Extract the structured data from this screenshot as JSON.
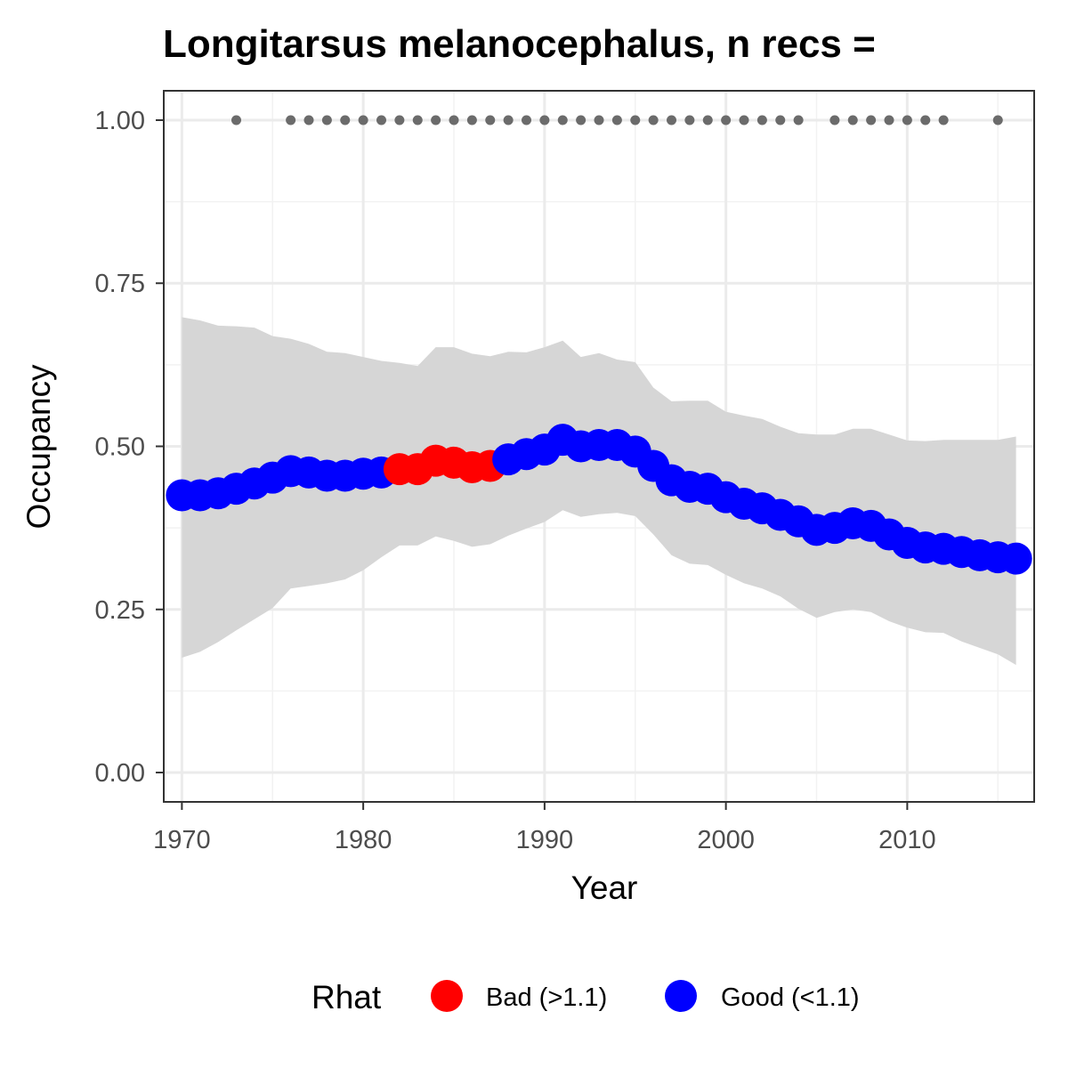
{
  "chart_data": {
    "type": "line",
    "title": "Longitarsus melanocephalus, n recs =",
    "xlabel": "Year",
    "ylabel": "Occupancy",
    "xlim": [
      1969,
      2017
    ],
    "ylim": [
      -0.045,
      1.045
    ],
    "x_ticks": [
      "1970",
      "1980",
      "1990",
      "2000",
      "2010"
    ],
    "y_ticks": [
      "0.00",
      "0.25",
      "0.50",
      "0.75",
      "1.00"
    ],
    "grid": true,
    "legend_position": "bottom",
    "legend": {
      "title": "Rhat",
      "entries": [
        {
          "label": "Bad (>1.1)",
          "color": "#ff0000"
        },
        {
          "label": "Good (<1.1)",
          "color": "#0000ff"
        }
      ]
    },
    "colors": {
      "bad": "#ff0000",
      "good": "#0000ff",
      "ribbon": "#d6d6d6",
      "records": "#6b6b6b"
    },
    "series": [
      {
        "name": "Rhat",
        "x": [
          1970,
          1971,
          1972,
          1973,
          1974,
          1975,
          1976,
          1977,
          1978,
          1979,
          1980,
          1981,
          1982,
          1983,
          1984,
          1985,
          1986,
          1987,
          1988,
          1989,
          1990,
          1991,
          1992,
          1993,
          1994,
          1995,
          1996,
          1997,
          1998,
          1999,
          2000,
          2001,
          2002,
          2003,
          2004,
          2005,
          2006,
          2007,
          2008,
          2009,
          2010,
          2011,
          2012,
          2013,
          2014,
          2015,
          2016
        ],
        "y": [
          0.425,
          0.425,
          0.428,
          0.435,
          0.443,
          0.452,
          0.462,
          0.46,
          0.455,
          0.455,
          0.458,
          0.46,
          0.465,
          0.465,
          0.478,
          0.475,
          0.468,
          0.47,
          0.48,
          0.488,
          0.495,
          0.51,
          0.5,
          0.502,
          0.502,
          0.492,
          0.47,
          0.448,
          0.438,
          0.435,
          0.422,
          0.412,
          0.405,
          0.395,
          0.385,
          0.372,
          0.375,
          0.382,
          0.378,
          0.365,
          0.352,
          0.345,
          0.343,
          0.338,
          0.333,
          0.33,
          0.328
        ],
        "lower": [
          0.176,
          0.185,
          0.2,
          0.218,
          0.235,
          0.252,
          0.282,
          0.286,
          0.29,
          0.296,
          0.31,
          0.33,
          0.348,
          0.348,
          0.362,
          0.355,
          0.346,
          0.35,
          0.363,
          0.374,
          0.384,
          0.402,
          0.392,
          0.396,
          0.398,
          0.393,
          0.365,
          0.333,
          0.32,
          0.318,
          0.303,
          0.29,
          0.282,
          0.27,
          0.251,
          0.237,
          0.246,
          0.25,
          0.246,
          0.232,
          0.222,
          0.215,
          0.214,
          0.201,
          0.191,
          0.181,
          0.165
        ],
        "upper": [
          0.698,
          0.693,
          0.685,
          0.684,
          0.682,
          0.669,
          0.665,
          0.657,
          0.645,
          0.643,
          0.637,
          0.631,
          0.628,
          0.623,
          0.652,
          0.652,
          0.642,
          0.638,
          0.645,
          0.644,
          0.652,
          0.662,
          0.637,
          0.643,
          0.633,
          0.629,
          0.59,
          0.569,
          0.57,
          0.57,
          0.553,
          0.547,
          0.542,
          0.53,
          0.52,
          0.518,
          0.518,
          0.527,
          0.527,
          0.518,
          0.509,
          0.508,
          0.51,
          0.51,
          0.51,
          0.51,
          0.515
        ],
        "rhat": [
          "Good",
          "Good",
          "Good",
          "Good",
          "Good",
          "Good",
          "Good",
          "Good",
          "Good",
          "Good",
          "Good",
          "Good",
          "Bad",
          "Bad",
          "Bad",
          "Bad",
          "Bad",
          "Bad",
          "Good",
          "Good",
          "Good",
          "Good",
          "Good",
          "Good",
          "Good",
          "Good",
          "Good",
          "Good",
          "Good",
          "Good",
          "Good",
          "Good",
          "Good",
          "Good",
          "Good",
          "Good",
          "Good",
          "Good",
          "Good",
          "Good",
          "Good",
          "Good",
          "Good",
          "Good",
          "Good",
          "Good",
          "Good"
        ]
      },
      {
        "name": "records",
        "x": [
          1973,
          1976,
          1977,
          1978,
          1979,
          1980,
          1981,
          1982,
          1983,
          1984,
          1985,
          1986,
          1987,
          1988,
          1989,
          1990,
          1991,
          1992,
          1993,
          1994,
          1995,
          1996,
          1997,
          1998,
          1999,
          2000,
          2001,
          2002,
          2003,
          2004,
          2006,
          2007,
          2008,
          2009,
          2010,
          2011,
          2012,
          2015
        ],
        "y": [
          1,
          1,
          1,
          1,
          1,
          1,
          1,
          1,
          1,
          1,
          1,
          1,
          1,
          1,
          1,
          1,
          1,
          1,
          1,
          1,
          1,
          1,
          1,
          1,
          1,
          1,
          1,
          1,
          1,
          1,
          1,
          1,
          1,
          1,
          1,
          1,
          1,
          1
        ]
      }
    ]
  }
}
